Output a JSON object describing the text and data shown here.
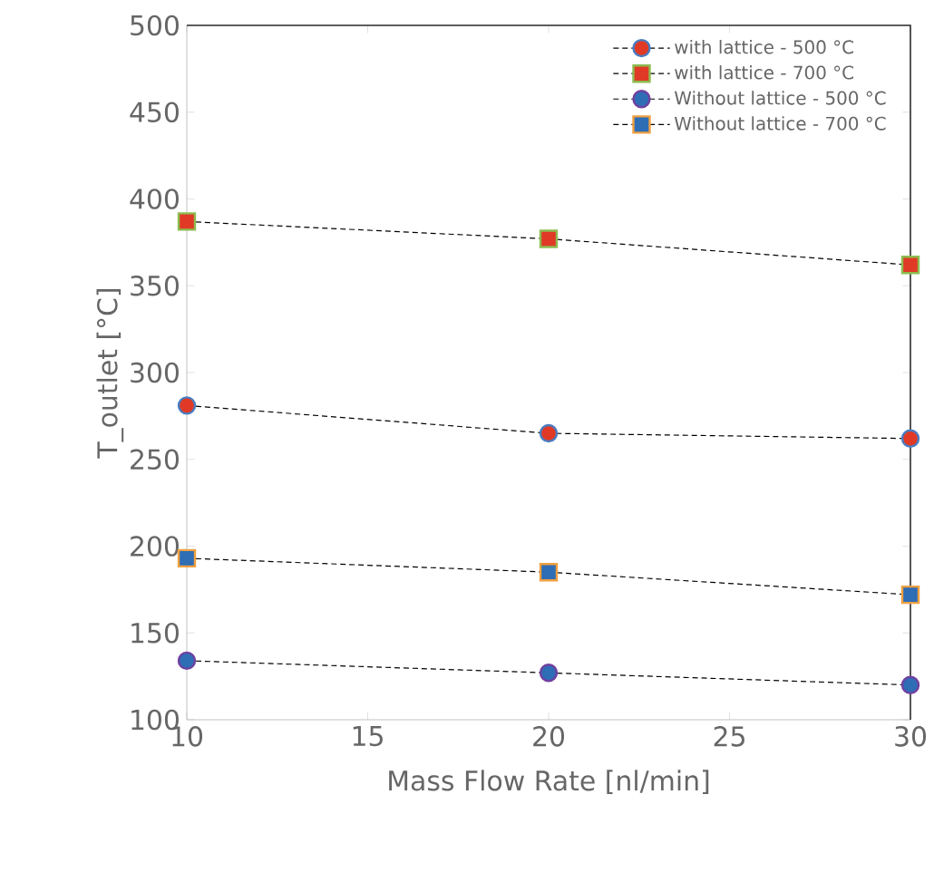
{
  "chart_data": {
    "type": "line",
    "xlabel": "Mass Flow Rate [nl/min]",
    "ylabel": "T_outlet [°C]",
    "x": [
      10,
      20,
      30
    ],
    "series": [
      {
        "name": "with lattice - 500 °C",
        "color": "#e03a26",
        "marker": "circle",
        "values": [
          281,
          265,
          262
        ]
      },
      {
        "name": "with lattice - 700 °C",
        "color": "#e03a26",
        "marker": "square",
        "values": [
          387,
          377,
          362
        ]
      },
      {
        "name": "Without lattice - 500 °C",
        "color": "#2f6db5",
        "marker": "circle",
        "values": [
          134,
          127,
          120
        ]
      },
      {
        "name": "Without lattice - 700 °C",
        "color": "#2f6db5",
        "marker": "square",
        "values": [
          193,
          185,
          172
        ]
      }
    ],
    "xlim": [
      10,
      30
    ],
    "xticks": [
      10,
      15,
      20,
      25,
      30
    ],
    "ylim": [
      100,
      500
    ],
    "yticks": [
      100,
      150,
      200,
      250,
      300,
      350,
      400,
      450,
      500
    ],
    "legend": "top right",
    "line_style": "dashed",
    "grid": false
  }
}
